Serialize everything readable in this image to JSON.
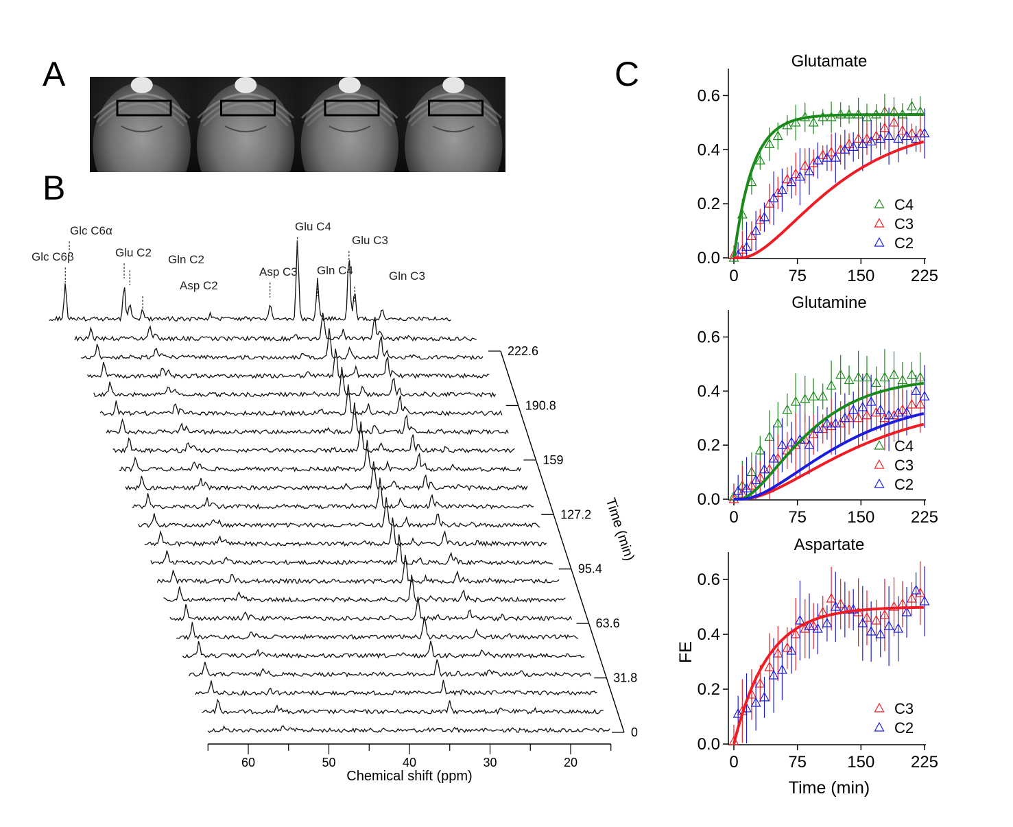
{
  "panels": {
    "a": "A",
    "b": "B",
    "c": "C"
  },
  "colors": {
    "c4": "#1a8a1a",
    "c3": "#ee1c24",
    "c2": "#1c1cdd",
    "trace": "#111111",
    "axis": "#000000"
  },
  "mri": {
    "slices": 4,
    "description_icon": "brain-mri-slice-icon"
  },
  "chart_data": [
    {
      "type": "line",
      "panel": "B",
      "title": "",
      "xlabel": "Chemical shift (ppm)",
      "ylabel": "Time (min)",
      "x_ticks": [
        60,
        50,
        40,
        30,
        20
      ],
      "xlim": [
        65,
        15
      ],
      "time_ticks": [
        "222.6",
        "190.8",
        "159",
        "127.2",
        "95.4",
        "63.6",
        "31.8",
        "0"
      ],
      "n_spectra": 22,
      "peak_labels": [
        {
          "label": "Glc C6β",
          "ppm": 63.0
        },
        {
          "label": "Glc C6α",
          "ppm": 62.5
        },
        {
          "label": "Glu C2",
          "ppm": 55.7
        },
        {
          "label": "Gln C2",
          "ppm": 55.0
        },
        {
          "label": "Asp C2",
          "ppm": 53.4
        },
        {
          "label": "Asp C3",
          "ppm": 37.6
        },
        {
          "label": "Glu C4",
          "ppm": 34.2
        },
        {
          "label": "Gln C4",
          "ppm": 31.7
        },
        {
          "label": "Glu C3",
          "ppm": 27.8
        },
        {
          "label": "Gln C3",
          "ppm": 27.1
        }
      ],
      "top_spectrum_peaks": [
        {
          "ppm": 63.0,
          "height": 50
        },
        {
          "ppm": 55.7,
          "height": 50
        },
        {
          "ppm": 55.0,
          "height": 25
        },
        {
          "ppm": 53.4,
          "height": 12
        },
        {
          "ppm": 45.0,
          "height": 8
        },
        {
          "ppm": 37.6,
          "height": 22
        },
        {
          "ppm": 34.2,
          "height": 115
        },
        {
          "ppm": 31.7,
          "height": 57
        },
        {
          "ppm": 27.8,
          "height": 95
        },
        {
          "ppm": 27.1,
          "height": 38
        },
        {
          "ppm": 23.7,
          "height": 15
        }
      ]
    },
    {
      "type": "scatter",
      "panel": "C",
      "title": "Glutamate",
      "xlabel": "",
      "ylabel": "",
      "xlim": [
        0,
        225
      ],
      "ylim": [
        0,
        0.7
      ],
      "x_ticks": [
        "0",
        "75",
        "150",
        "225"
      ],
      "y_ticks": [
        "0.0",
        "0.2",
        "0.4",
        "0.6"
      ],
      "legend": [
        "C4",
        "C3",
        "C2"
      ],
      "series": [
        {
          "name": "C4",
          "color": "#1a8a1a",
          "x": [
            0,
            10,
            21,
            31,
            42,
            52,
            63,
            73,
            84,
            94,
            105,
            115,
            126,
            136,
            147,
            157,
            168,
            178,
            189,
            199,
            210,
            220
          ],
          "values": [
            0.0,
            0.16,
            0.28,
            0.36,
            0.42,
            0.45,
            0.49,
            0.5,
            0.52,
            0.5,
            0.52,
            0.52,
            0.53,
            0.53,
            0.53,
            0.52,
            0.53,
            0.54,
            0.54,
            0.53,
            0.56,
            0.54
          ],
          "error": 0.05,
          "fit": {
            "a": 0.53,
            "k": 0.045
          }
        },
        {
          "name": "C3",
          "color": "#ee1c24",
          "x": [
            0,
            10,
            21,
            31,
            42,
            52,
            63,
            73,
            84,
            94,
            105,
            115,
            126,
            136,
            147,
            157,
            168,
            178,
            189,
            199,
            210,
            220
          ],
          "values": [
            0.01,
            0.03,
            0.08,
            0.14,
            0.2,
            0.24,
            0.29,
            0.31,
            0.34,
            0.35,
            0.38,
            0.39,
            0.4,
            0.42,
            0.44,
            0.44,
            0.45,
            0.48,
            0.5,
            0.47,
            0.46,
            0.46
          ],
          "error": 0.06,
          "fit": {
            "a": 0.5,
            "k": 0.016,
            "lag": 8
          }
        },
        {
          "name": "C2",
          "color": "#1c1cdd",
          "x": [
            5,
            15,
            26,
            36,
            47,
            57,
            68,
            78,
            89,
            99,
            110,
            120,
            131,
            141,
            152,
            162,
            173,
            183,
            194,
            204,
            215,
            225
          ],
          "values": [
            0.01,
            0.04,
            0.1,
            0.15,
            0.22,
            0.25,
            0.28,
            0.3,
            0.32,
            0.36,
            0.37,
            0.37,
            0.4,
            0.41,
            0.42,
            0.43,
            0.44,
            0.45,
            0.44,
            0.45,
            0.44,
            0.46
          ],
          "error": 0.08,
          "fit": null
        }
      ]
    },
    {
      "type": "scatter",
      "panel": "C",
      "title": "Glutamine",
      "xlabel": "",
      "ylabel": "",
      "xlim": [
        0,
        225
      ],
      "ylim": [
        0,
        0.7
      ],
      "x_ticks": [
        "0",
        "75",
        "150",
        "225"
      ],
      "y_ticks": [
        "0.0",
        "0.2",
        "0.4",
        "0.6"
      ],
      "legend": [
        "C4",
        "C3",
        "C2"
      ],
      "series": [
        {
          "name": "C4",
          "color": "#1a8a1a",
          "x": [
            0,
            10,
            21,
            31,
            42,
            52,
            63,
            73,
            84,
            94,
            105,
            115,
            126,
            136,
            147,
            157,
            168,
            178,
            189,
            199,
            210,
            220
          ],
          "values": [
            0.01,
            0.05,
            0.1,
            0.18,
            0.23,
            0.28,
            0.33,
            0.36,
            0.37,
            0.38,
            0.38,
            0.42,
            0.46,
            0.44,
            0.45,
            0.45,
            0.43,
            0.45,
            0.46,
            0.44,
            0.46,
            0.45
          ],
          "error": 0.08,
          "fit": {
            "a": 0.45,
            "k": 0.022,
            "lag": 5
          }
        },
        {
          "name": "C3",
          "color": "#ee1c24",
          "x": [
            0,
            10,
            21,
            31,
            42,
            52,
            63,
            73,
            84,
            94,
            105,
            115,
            126,
            136,
            147,
            157,
            168,
            178,
            189,
            199,
            210,
            220
          ],
          "values": [
            0.0,
            0.02,
            0.05,
            0.08,
            0.11,
            0.15,
            0.18,
            0.2,
            0.22,
            0.24,
            0.26,
            0.27,
            0.28,
            0.3,
            0.3,
            0.31,
            0.32,
            0.3,
            0.31,
            0.33,
            0.35,
            0.35
          ],
          "error": 0.09,
          "fit": {
            "a": 0.36,
            "k": 0.013,
            "lag": 8
          }
        },
        {
          "name": "C2",
          "color": "#1c1cdd",
          "x": [
            5,
            15,
            26,
            36,
            47,
            57,
            68,
            78,
            89,
            99,
            110,
            120,
            131,
            141,
            152,
            162,
            173,
            183,
            194,
            204,
            215,
            225
          ],
          "values": [
            0.03,
            0.04,
            0.07,
            0.11,
            0.15,
            0.2,
            0.21,
            0.22,
            0.2,
            0.26,
            0.28,
            0.28,
            0.3,
            0.33,
            0.34,
            0.36,
            0.33,
            0.31,
            0.32,
            0.32,
            0.4,
            0.38
          ],
          "error": 0.1,
          "fit": {
            "a": 0.38,
            "k": 0.015,
            "lag": 8
          }
        }
      ]
    },
    {
      "type": "scatter",
      "panel": "C",
      "title": "Aspartate",
      "xlabel": "Time (min)",
      "ylabel": "FE",
      "xlim": [
        0,
        225
      ],
      "ylim": [
        0,
        0.7
      ],
      "x_ticks": [
        "0",
        "75",
        "150",
        "225"
      ],
      "y_ticks": [
        "0.0",
        "0.2",
        "0.4",
        "0.6"
      ],
      "legend": [
        "C3",
        "C2"
      ],
      "series": [
        {
          "name": "C3",
          "color": "#ee1c24",
          "x": [
            0,
            10,
            21,
            31,
            42,
            52,
            63,
            73,
            84,
            94,
            105,
            115,
            126,
            136,
            147,
            157,
            168,
            178,
            189,
            199,
            210,
            220
          ],
          "values": [
            0.01,
            0.12,
            0.18,
            0.22,
            0.28,
            0.33,
            0.35,
            0.4,
            0.42,
            0.43,
            0.48,
            0.53,
            0.51,
            0.49,
            0.48,
            0.46,
            0.45,
            0.47,
            0.5,
            0.51,
            0.53,
            0.55
          ],
          "error": 0.1,
          "fit": {
            "a": 0.5,
            "k": 0.025
          }
        },
        {
          "name": "C2",
          "color": "#1c1cdd",
          "x": [
            5,
            15,
            26,
            36,
            47,
            57,
            68,
            78,
            89,
            99,
            110,
            120,
            131,
            141,
            152,
            162,
            173,
            183,
            194,
            204,
            215,
            225
          ],
          "values": [
            0.11,
            0.13,
            0.15,
            0.17,
            0.25,
            0.27,
            0.34,
            0.45,
            0.43,
            0.42,
            0.44,
            0.5,
            0.49,
            0.49,
            0.44,
            0.41,
            0.4,
            0.43,
            0.42,
            0.48,
            0.56,
            0.52
          ],
          "error": 0.11,
          "fit": null
        }
      ]
    }
  ]
}
